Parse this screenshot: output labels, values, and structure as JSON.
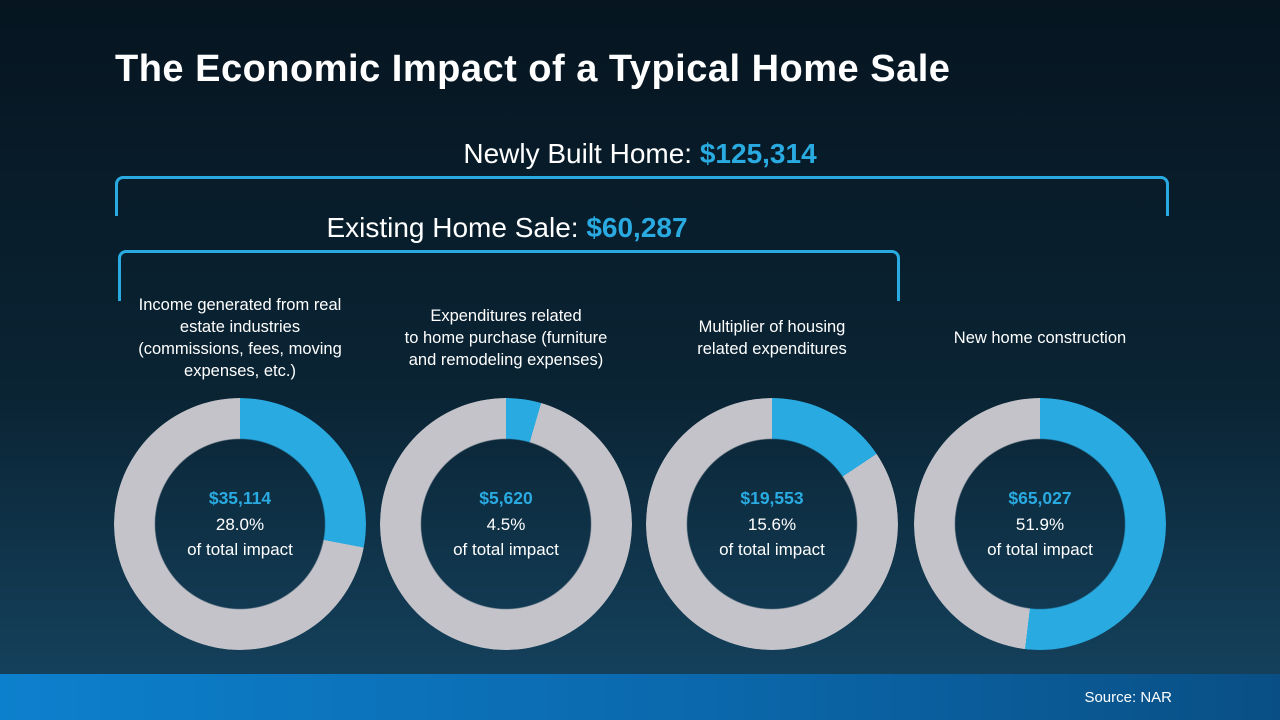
{
  "slide": {
    "title": "The Economic Impact of a Typical Home Sale",
    "newly_built": {
      "label": "Newly Built Home: ",
      "amount": "$125,314"
    },
    "existing": {
      "label": "Existing Home Sale: ",
      "amount": "$60,287"
    },
    "source": "Source: NAR"
  },
  "colors": {
    "accent": "#29abe2",
    "ring_gray": "#c4c3c9"
  },
  "chart_data": [
    {
      "type": "pie",
      "title": "Income generated from real\nestate industries\n(commissions, fees, moving\nexpenses, etc.)",
      "center_amount": "$35,114",
      "percent": 28.0,
      "percent_label": "28.0%",
      "caption": "of total impact",
      "slices": [
        {
          "name": "share of total impact",
          "value": 28.0
        },
        {
          "name": "remainder",
          "value": 72.0
        }
      ]
    },
    {
      "type": "pie",
      "title": "Expenditures related\nto home purchase (furniture\nand remodeling expenses)",
      "center_amount": "$5,620",
      "percent": 4.5,
      "percent_label": "4.5%",
      "caption": "of total impact",
      "slices": [
        {
          "name": "share of total impact",
          "value": 4.5
        },
        {
          "name": "remainder",
          "value": 95.5
        }
      ]
    },
    {
      "type": "pie",
      "title": "Multiplier of housing\nrelated expenditures",
      "center_amount": "$19,553",
      "percent": 15.6,
      "percent_label": "15.6%",
      "caption": "of total impact",
      "slices": [
        {
          "name": "share of total impact",
          "value": 15.6
        },
        {
          "name": "remainder",
          "value": 84.4
        }
      ]
    },
    {
      "type": "pie",
      "title": "New home construction",
      "center_amount": "$65,027",
      "percent": 51.9,
      "percent_label": "51.9%",
      "caption": "of total impact",
      "slices": [
        {
          "name": "share of total impact",
          "value": 51.9
        },
        {
          "name": "remainder",
          "value": 48.1
        }
      ]
    }
  ]
}
